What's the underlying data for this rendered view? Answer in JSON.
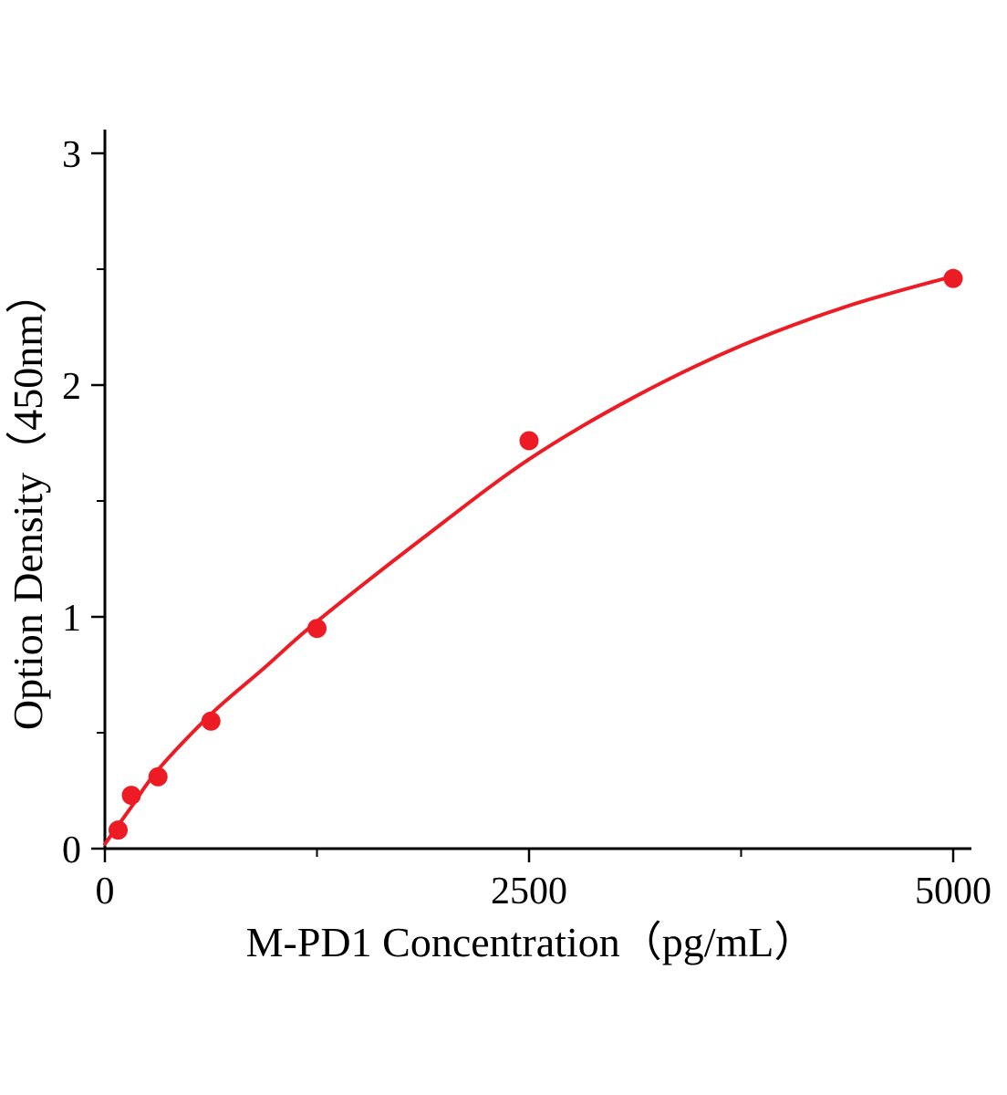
{
  "figure": {
    "background": "#ffffff"
  },
  "chart_data": {
    "type": "scatter",
    "title": "",
    "xlabel": "M-PD1 Concentration（pg/mL）",
    "ylabel": "Option Density（450nm）",
    "xlim": [
      0,
      5000
    ],
    "ylim": [
      0,
      3
    ],
    "x_ticks": [
      0,
      2500,
      5000
    ],
    "y_ticks": [
      0,
      1,
      2,
      3
    ],
    "x_minor_step": 1250,
    "y_minor_step": 0.5,
    "grid": false,
    "legend": "none",
    "axis_color": "#000000",
    "point_color": "#ed1c24",
    "line_color": "#ed1c24",
    "points": [
      {
        "x": 78,
        "y": 0.08
      },
      {
        "x": 156,
        "y": 0.23
      },
      {
        "x": 313,
        "y": 0.31
      },
      {
        "x": 625,
        "y": 0.55
      },
      {
        "x": 1250,
        "y": 0.95
      },
      {
        "x": 2500,
        "y": 1.76
      },
      {
        "x": 5000,
        "y": 2.46
      }
    ],
    "fit_curve": [
      {
        "x": 0,
        "y": 0.02
      },
      {
        "x": 156,
        "y": 0.18
      },
      {
        "x": 313,
        "y": 0.34
      },
      {
        "x": 625,
        "y": 0.58
      },
      {
        "x": 940,
        "y": 0.78
      },
      {
        "x": 1250,
        "y": 0.98
      },
      {
        "x": 1875,
        "y": 1.34
      },
      {
        "x": 2500,
        "y": 1.68
      },
      {
        "x": 3125,
        "y": 1.95
      },
      {
        "x": 3750,
        "y": 2.17
      },
      {
        "x": 4375,
        "y": 2.34
      },
      {
        "x": 5000,
        "y": 2.47
      }
    ]
  }
}
